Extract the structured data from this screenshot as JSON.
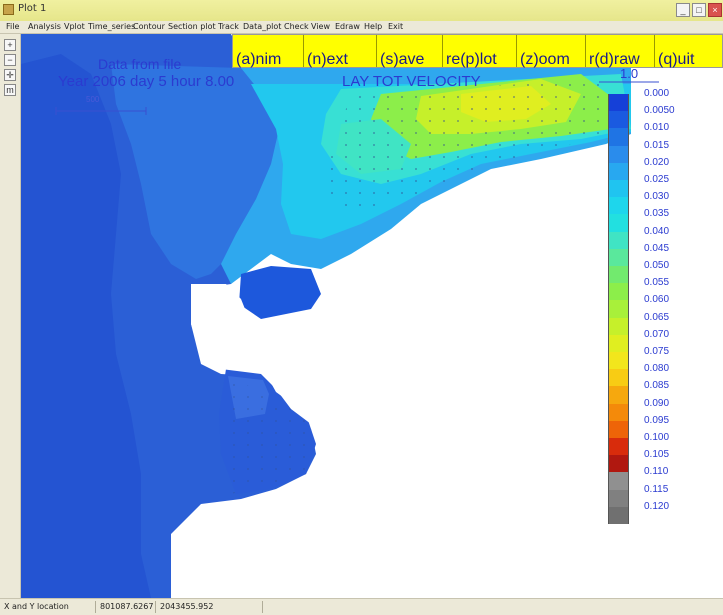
{
  "window": {
    "title": "Plot 1"
  },
  "menu": [
    "File",
    "Analysis",
    "Vplot",
    "Time_series",
    "Contour",
    "Section plot",
    "Track",
    "Data_plot",
    "Check",
    "View",
    "Edraw",
    "Help",
    "Exit"
  ],
  "toolbar_buttons": [
    {
      "icon": "zoom-in-icon",
      "glyph": "+"
    },
    {
      "icon": "zoom-out-icon",
      "glyph": "−"
    },
    {
      "icon": "crosshair-icon",
      "glyph": "✛"
    },
    {
      "icon": "ruler-icon",
      "glyph": "m"
    }
  ],
  "plot_commands": [
    "(a)nim",
    "(n)ext",
    "(s)ave",
    "re(p)lot",
    "(z)oom",
    "r(d)raw",
    "(q)uit"
  ],
  "plot_header": {
    "source": "Data from file",
    "time": "Year 2006 day  5 hour  8.00",
    "variable": "LAY TOT VELOCITY",
    "scale_label": "1.0",
    "vector_label": "500"
  },
  "legend": {
    "values": [
      "0.000",
      "0.0050",
      "0.010",
      "0.015",
      "0.020",
      "0.025",
      "0.030",
      "0.035",
      "0.040",
      "0.045",
      "0.050",
      "0.055",
      "0.060",
      "0.065",
      "0.070",
      "0.075",
      "0.080",
      "0.085",
      "0.090",
      "0.095",
      "0.100",
      "0.105",
      "0.110",
      "0.115",
      "0.120"
    ],
    "colors": [
      "#1540d8",
      "#1a5ae0",
      "#1f74e4",
      "#2a8cec",
      "#28a8f0",
      "#20c4f0",
      "#1ed6ec",
      "#22e0e0",
      "#40e4c4",
      "#5ae89c",
      "#72ea6e",
      "#8cee4a",
      "#a8f03a",
      "#c6f02a",
      "#e0ee20",
      "#f2e61c",
      "#f8cc14",
      "#f6a80e",
      "#f48a0a",
      "#ee6408",
      "#d82c0c",
      "#b01810",
      "#909090",
      "#808080",
      "#707070"
    ]
  },
  "status": {
    "label": "X and Y location",
    "x": "801087.6267",
    "y": "2043455.952"
  },
  "colors": {
    "land": "#2b5fd6",
    "deep_water": "#1a46d0",
    "menubar": "#ece9d8",
    "command_bar": "#ffff00",
    "annotation_text": "#2b3bd0"
  }
}
